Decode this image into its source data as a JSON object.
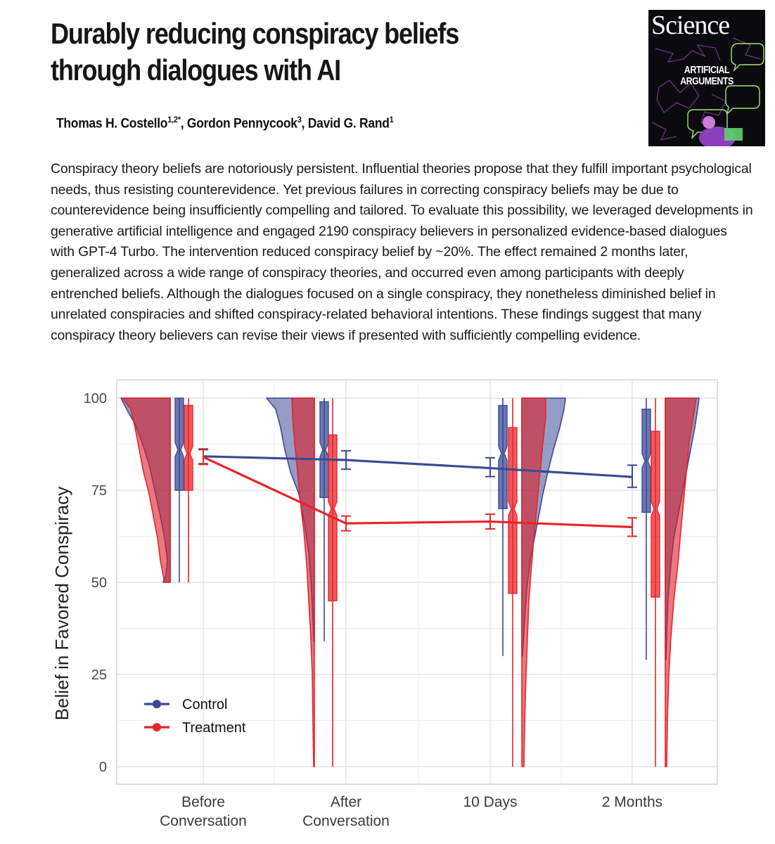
{
  "article": {
    "title": "Durably reducing conspiracy beliefs through dialogues with AI",
    "authors": [
      {
        "name": "Thomas H. Costello",
        "sup": "1,2*"
      },
      {
        "name": "Gordon Pennycook",
        "sup": "3"
      },
      {
        "name": "David G. Rand",
        "sup": "1"
      }
    ],
    "author_separator": ", ",
    "abstract": "Conspiracy theory beliefs are notoriously persistent. Influential theories propose that they fulfill important psychological needs, thus resisting counterevidence. Yet previous failures in correcting conspiracy beliefs may be due to counterevidence being insufficiently compelling and tailored. To evaluate this possibility, we leveraged developments in generative artificial intelligence and engaged 2190 conspiracy believers in personalized evidence-based dialogues with GPT-4 Turbo. The intervention reduced conspiracy belief by ~20%. The effect remained 2 months later, generalized across a wide range of conspiracy theories, and occurred even among participants with deeply entrenched beliefs. Although the dialogues focused on a single conspiracy, they nonetheless diminished belief in unrelated conspiracies and shifted conspiracy-related behavioral intentions. These findings suggest that many conspiracy theory believers can revise their views if presented with sufficiently compelling evidence."
  },
  "cover": {
    "masthead": "Science",
    "headline": "ARTIFICIAL ARGUMENTS"
  },
  "chart_data": {
    "type": "line",
    "ylabel": "Belief in Favored Conspiracy",
    "xlabel": "",
    "ylim": [
      0,
      100
    ],
    "yticks": [
      0,
      25,
      50,
      75,
      100
    ],
    "categories": [
      "Before\nConversation",
      "After\nConversation",
      "10 Days",
      "2 Months"
    ],
    "grid": true,
    "legend": "bottom-left",
    "series": [
      {
        "name": "Control",
        "color": "#3b4a94",
        "means": [
          84.2,
          83.2,
          81.0,
          78.6
        ],
        "ci": [
          [
            82.2,
            86.2
          ],
          [
            80.7,
            85.7
          ],
          [
            78.7,
            83.8
          ],
          [
            75.8,
            81.8
          ]
        ],
        "box": [
          {
            "whisker_low": 50,
            "q1": 75,
            "median": 86,
            "q3": 100,
            "whisker_high": 100
          },
          {
            "whisker_low": 34,
            "q1": 73,
            "median": 86,
            "q3": 99,
            "whisker_high": 100
          },
          {
            "whisker_low": 30,
            "q1": 70,
            "median": 85,
            "q3": 98,
            "whisker_high": 100
          },
          {
            "whisker_low": 29,
            "q1": 69,
            "median": 83,
            "q3": 97,
            "whisker_high": 100
          }
        ]
      },
      {
        "name": "Treatment",
        "color": "#e8242a",
        "means": [
          84.0,
          66.0,
          66.5,
          65.0
        ],
        "ci": [
          [
            82.0,
            86.0
          ],
          [
            64.0,
            68.0
          ],
          [
            64.5,
            68.5
          ],
          [
            62.5,
            67.5
          ]
        ],
        "box": [
          {
            "whisker_low": 50,
            "q1": 75,
            "median": 85,
            "q3": 98,
            "whisker_high": 100
          },
          {
            "whisker_low": 0,
            "q1": 45,
            "median": 70,
            "q3": 90,
            "whisker_high": 100
          },
          {
            "whisker_low": 0,
            "q1": 47,
            "median": 70,
            "q3": 92,
            "whisker_high": 100
          },
          {
            "whisker_low": 0,
            "q1": 46,
            "median": 70,
            "q3": 91,
            "whisker_high": 100
          }
        ]
      }
    ]
  }
}
